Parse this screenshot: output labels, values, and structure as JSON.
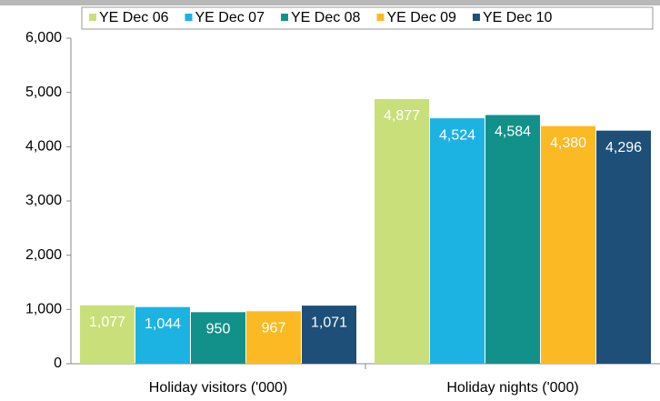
{
  "chart_data": {
    "type": "bar",
    "categories": [
      "Holiday visitors ('000)",
      "Holiday nights ('000)"
    ],
    "series": [
      {
        "name": "YE Dec 06",
        "color": "#c9e07a",
        "values": [
          1077,
          4877
        ],
        "value_labels": [
          "1,077",
          "4,877"
        ]
      },
      {
        "name": "YE Dec 07",
        "color": "#1cb3e3",
        "values": [
          1044,
          4524
        ],
        "value_labels": [
          "1,044",
          "4,524"
        ]
      },
      {
        "name": "YE Dec 08",
        "color": "#12918a",
        "values": [
          950,
          4584
        ],
        "value_labels": [
          "950",
          "4,584"
        ]
      },
      {
        "name": "YE Dec 09",
        "color": "#fbb924",
        "values": [
          967,
          4380
        ],
        "value_labels": [
          "967",
          "4,380"
        ]
      },
      {
        "name": "YE Dec 10",
        "color": "#1d4f78",
        "values": [
          1071,
          4296
        ],
        "value_labels": [
          "1,071",
          "4,296"
        ]
      }
    ],
    "ylim": [
      0,
      6000
    ],
    "yticks": [
      0,
      {
        "value": 1000,
        "label": "1,000"
      },
      {
        "value": 2000,
        "label": "2,000"
      },
      {
        "value": 3000,
        "label": "3,000"
      },
      {
        "value": 4000,
        "label": "4,000"
      },
      {
        "value": 5000,
        "label": "5,000"
      },
      {
        "value": 6000,
        "label": "6,000"
      }
    ],
    "legend": "top"
  }
}
